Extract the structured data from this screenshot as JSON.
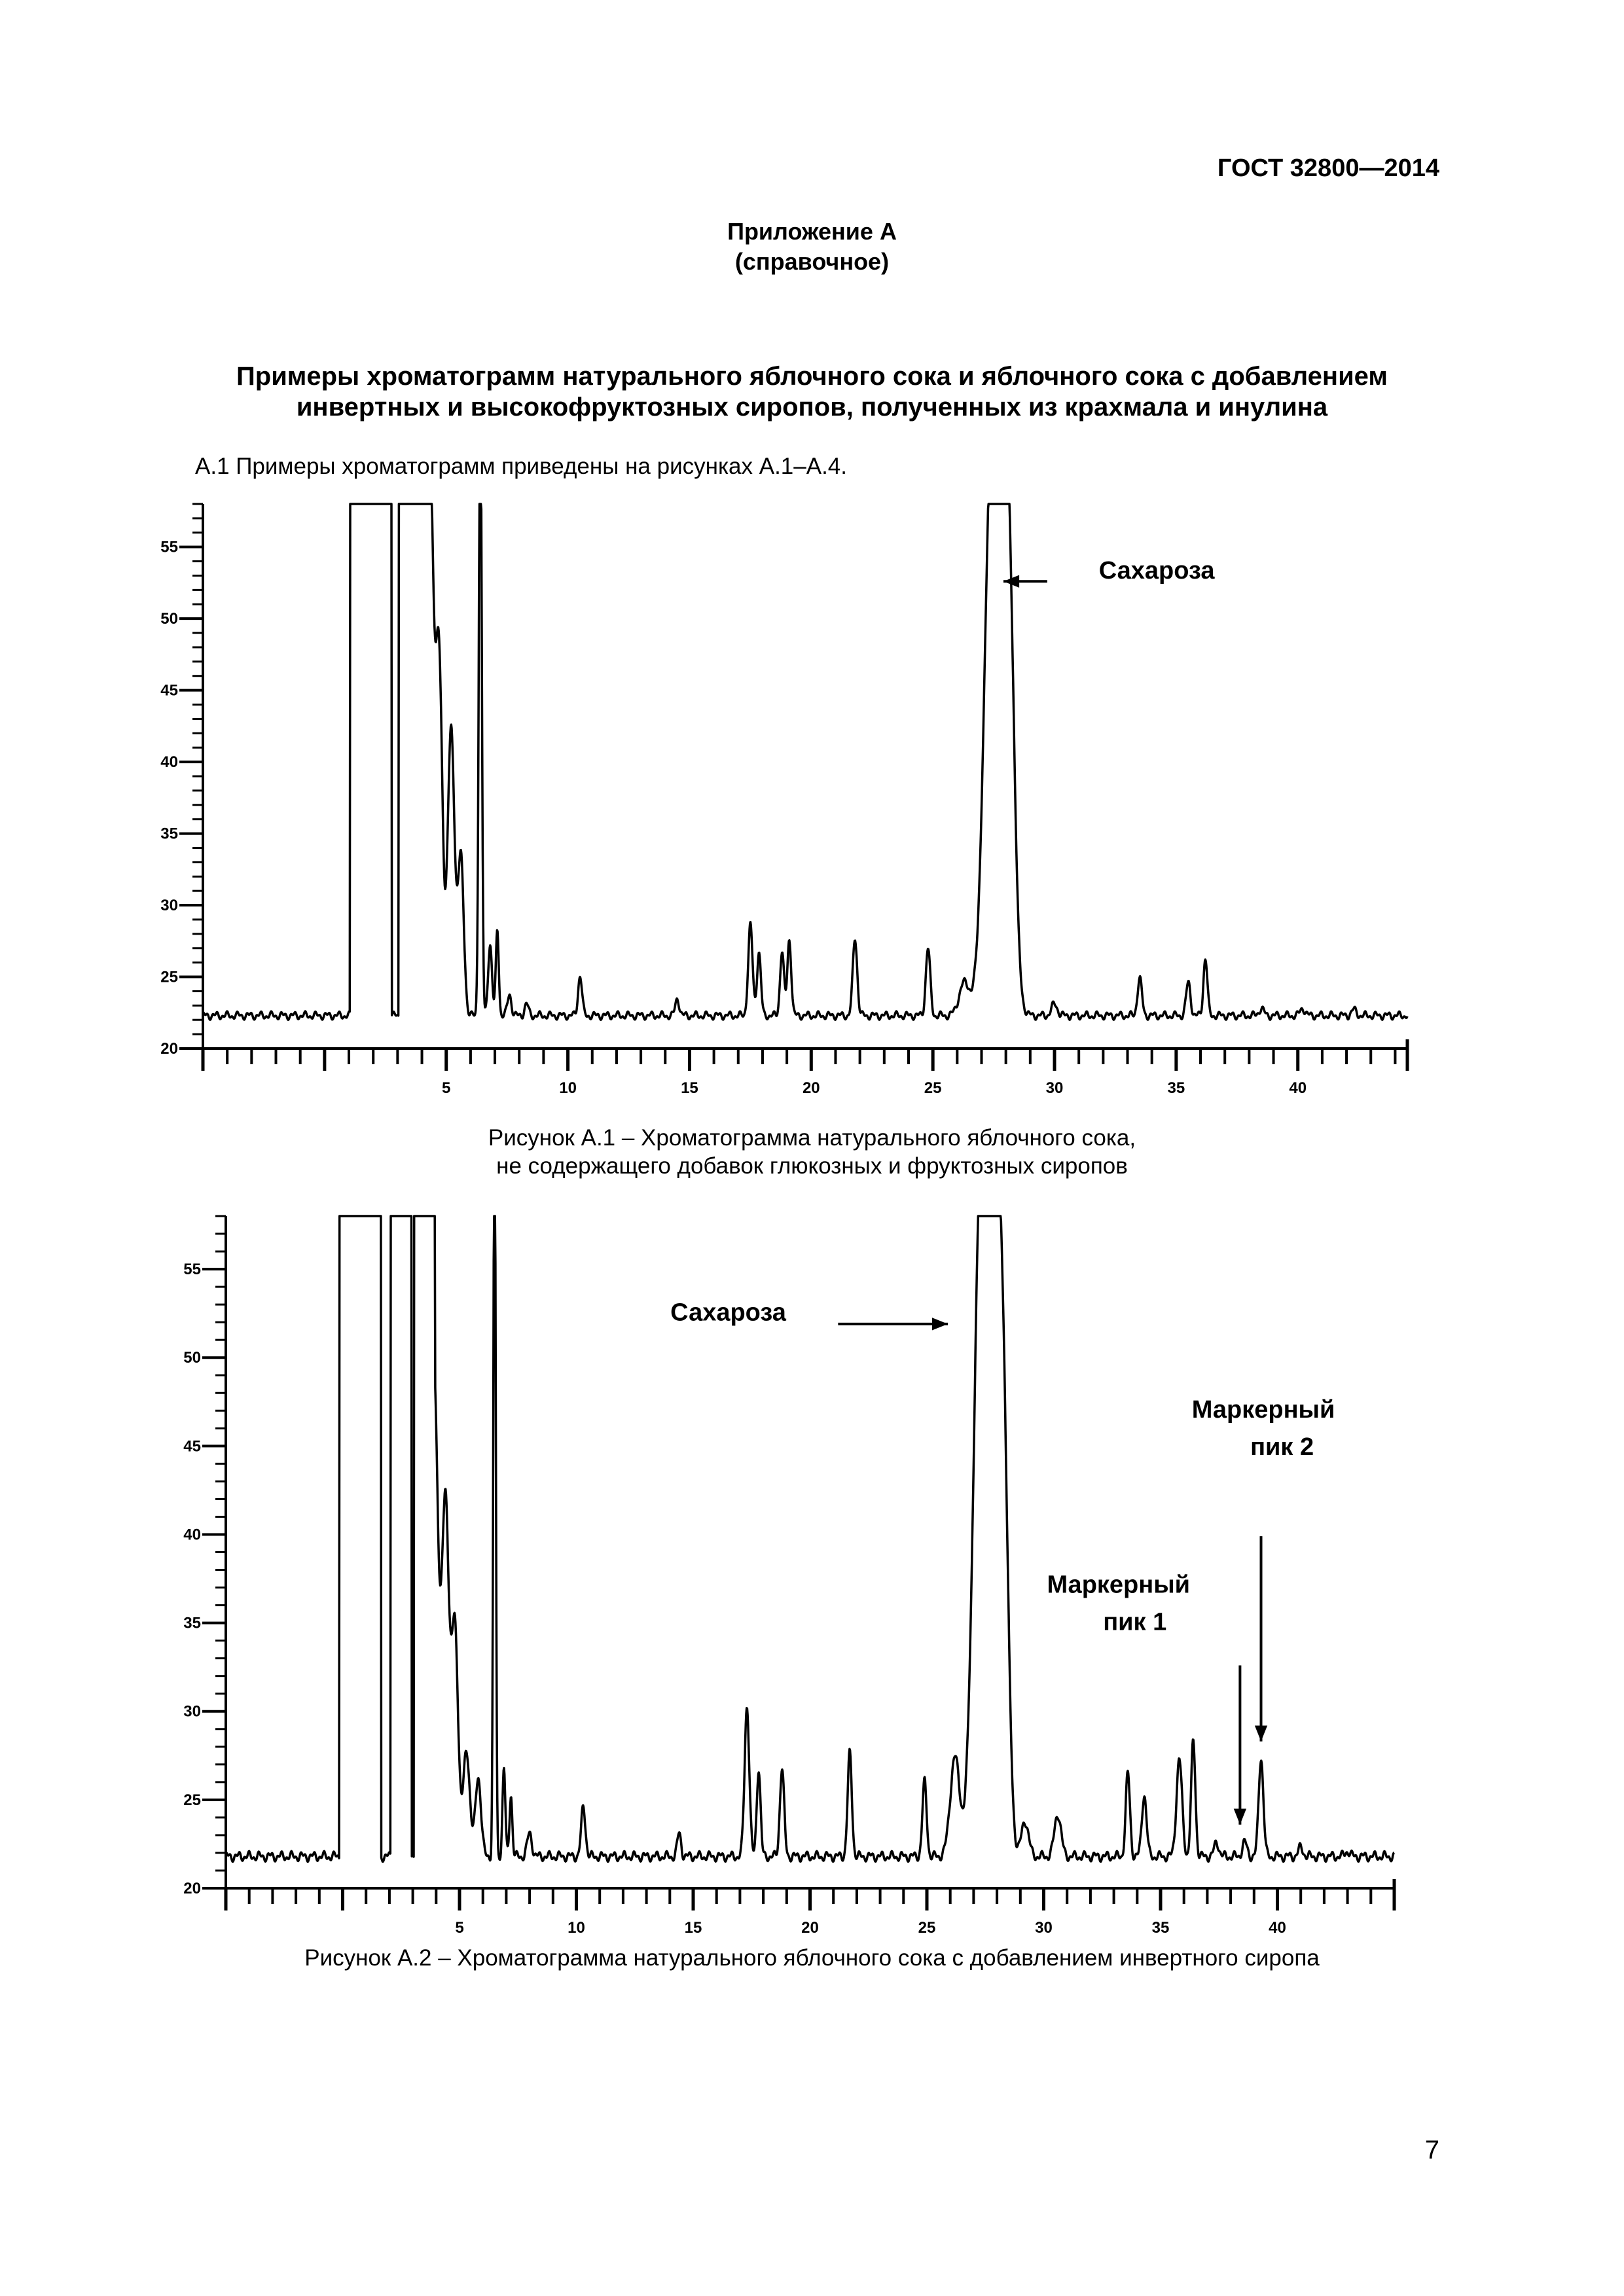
{
  "header": {
    "standard_id": "ГОСТ 32800—2014"
  },
  "appendix": {
    "label": "Приложение А",
    "kind": "(справочное)"
  },
  "title": {
    "line1": "Примеры хроматограмм натурального яблочного сока и яблочного сока с добавлением",
    "line2": "инвертных и высокофруктозных сиропов, полученных из крахмала и инулина"
  },
  "intro_text": "А.1 Примеры хроматограмм приведены на рисунках А.1–А.4.",
  "figures": [
    {
      "caption_line1": "Рисунок А.1 – Хроматограмма  натурального яблочного сока,",
      "caption_line2": "не содержащего добавок глюкозных и фруктозных сиропов"
    },
    {
      "caption_line1": "Рисунок А.2 – Хроматограмма натурального яблочного сока с добавлением  инвертного сиропа"
    }
  ],
  "page_number": "7",
  "chart_data": [
    {
      "type": "line",
      "title": "",
      "xlabel": "",
      "ylabel": "",
      "xlim": [
        -5,
        44.5
      ],
      "ylim": [
        20,
        58
      ],
      "x_ticks": [
        5,
        10,
        15,
        20,
        25,
        30,
        35,
        40
      ],
      "x_tick_labels": [
        "5",
        "10",
        "15",
        "20",
        "25",
        "30",
        "35",
        "40"
      ],
      "y_ticks": [
        20,
        25,
        30,
        35,
        40,
        45,
        50,
        55
      ],
      "y_tick_labels": [
        "20",
        "25",
        "30",
        "35",
        "40",
        "45",
        "50",
        "55"
      ],
      "grid": false,
      "baseline": 22.3,
      "clip_max": 58,
      "peaks": [
        [
          1.5,
          2,
          0
        ],
        [
          2.3,
          2,
          0
        ],
        [
          3.5,
          2,
          0
        ],
        [
          4.0,
          40,
          0.18
        ],
        [
          4.35,
          33,
          0.14
        ],
        [
          4.7,
          25,
          0.14
        ],
        [
          5.2,
          20,
          0.14
        ],
        [
          5.6,
          11,
          0.12
        ],
        [
          6.4,
          45,
          0.06
        ],
        [
          6.8,
          5,
          0.08
        ],
        [
          7.1,
          6,
          0.06
        ],
        [
          7.6,
          1.5,
          0.08
        ],
        [
          8.3,
          0.8,
          0.08
        ],
        [
          10.5,
          2.8,
          0.08
        ],
        [
          14.5,
          1.2,
          0.08
        ],
        [
          17.5,
          6.3,
          0.09
        ],
        [
          17.85,
          4.4,
          0.08
        ],
        [
          18.8,
          4.5,
          0.08
        ],
        [
          19.1,
          5.3,
          0.08
        ],
        [
          21.8,
          5.4,
          0.09
        ],
        [
          24.8,
          4.7,
          0.09
        ],
        [
          26.3,
          2.3,
          0.22
        ],
        [
          27.4,
          34.6,
          0.3
        ],
        [
          27.9,
          34.6,
          0.3
        ],
        [
          28.2,
          10,
          0.18
        ],
        [
          30.0,
          0.8,
          0.12
        ],
        [
          33.5,
          2.6,
          0.09
        ],
        [
          35.5,
          2.3,
          0.09
        ],
        [
          36.2,
          4,
          0.08
        ],
        [
          38.5,
          0.5,
          0.1
        ],
        [
          40.2,
          0.5,
          0.1
        ],
        [
          42.3,
          0.4,
          0.1
        ]
      ],
      "annotations": [
        {
          "text": "Сахароза",
          "x": 34.2,
          "y": 52.8,
          "arrow_to": {
            "x": 27.9,
            "y": 52.6
          }
        }
      ]
    },
    {
      "type": "line",
      "title": "",
      "xlabel": "",
      "ylabel": "",
      "xlim": [
        -5,
        45
      ],
      "ylim": [
        20,
        58
      ],
      "x_ticks": [
        5,
        10,
        15,
        20,
        25,
        30,
        35,
        40
      ],
      "x_tick_labels": [
        "5",
        "10",
        "15",
        "20",
        "25",
        "30",
        "35",
        "40"
      ],
      "y_ticks": [
        20,
        25,
        30,
        35,
        40,
        45,
        50,
        55
      ],
      "y_tick_labels": [
        "20",
        "25",
        "30",
        "35",
        "40",
        "45",
        "50",
        "55"
      ],
      "grid": false,
      "baseline": 21.8,
      "clip_max": 58,
      "peaks": [
        [
          0.3,
          2,
          0
        ],
        [
          1.2,
          2,
          0
        ],
        [
          2.5,
          2,
          0
        ],
        [
          3.5,
          2,
          0
        ],
        [
          3.9,
          28,
          0.18
        ],
        [
          4.4,
          20,
          0.15
        ],
        [
          4.8,
          13,
          0.14
        ],
        [
          5.3,
          6,
          0.14
        ],
        [
          5.8,
          4.5,
          0.12
        ],
        [
          6.5,
          45,
          0.05
        ],
        [
          6.9,
          5,
          0.06
        ],
        [
          7.2,
          3.5,
          0.06
        ],
        [
          8.0,
          1.3,
          0.1
        ],
        [
          10.3,
          2.8,
          0.09
        ],
        [
          14.4,
          1.3,
          0.08
        ],
        [
          17.3,
          8.5,
          0.1
        ],
        [
          17.8,
          5,
          0.08
        ],
        [
          18.8,
          5,
          0.09
        ],
        [
          21.7,
          5.8,
          0.09
        ],
        [
          24.9,
          4.2,
          0.09
        ],
        [
          26.2,
          5.6,
          0.2
        ],
        [
          27.3,
          36.2,
          0.3
        ],
        [
          27.9,
          36.2,
          0.3
        ],
        [
          28.3,
          14,
          0.2
        ],
        [
          29.2,
          2,
          0.15
        ],
        [
          30.6,
          2.4,
          0.14
        ],
        [
          33.6,
          4.7,
          0.09
        ],
        [
          34.3,
          3.5,
          0.1
        ],
        [
          35.8,
          5.5,
          0.12
        ],
        [
          36.4,
          6.5,
          0.09
        ],
        [
          37.4,
          0.8,
          0.1
        ],
        [
          38.6,
          0.8,
          0.1
        ],
        [
          39.3,
          5.6,
          0.1
        ],
        [
          41.0,
          0.5,
          0.1
        ],
        [
          43.0,
          0.3,
          0.1
        ]
      ],
      "annotations": [
        {
          "text": "Сахароза",
          "x": 16.5,
          "y": 52.1,
          "arrow_from": {
            "x": 21.2,
            "y": 51.9
          },
          "arrow_to": {
            "x": 25.9,
            "y": 51.9
          }
        },
        {
          "text": "Маркерный",
          "x": 39.4,
          "y": 46.6
        },
        {
          "text": "пик 2",
          "x": 40.2,
          "y": 44.5,
          "arrow_from": {
            "x": 39.3,
            "y": 39.9
          },
          "arrow_to": {
            "x": 39.3,
            "y": 28.3
          }
        },
        {
          "text": "Маркерный",
          "x": 33.2,
          "y": 36.7
        },
        {
          "text": "пик 1",
          "x": 33.9,
          "y": 34.6,
          "arrow_from": {
            "x": 38.4,
            "y": 32.6
          },
          "arrow_to": {
            "x": 38.4,
            "y": 23.6
          }
        }
      ]
    }
  ]
}
